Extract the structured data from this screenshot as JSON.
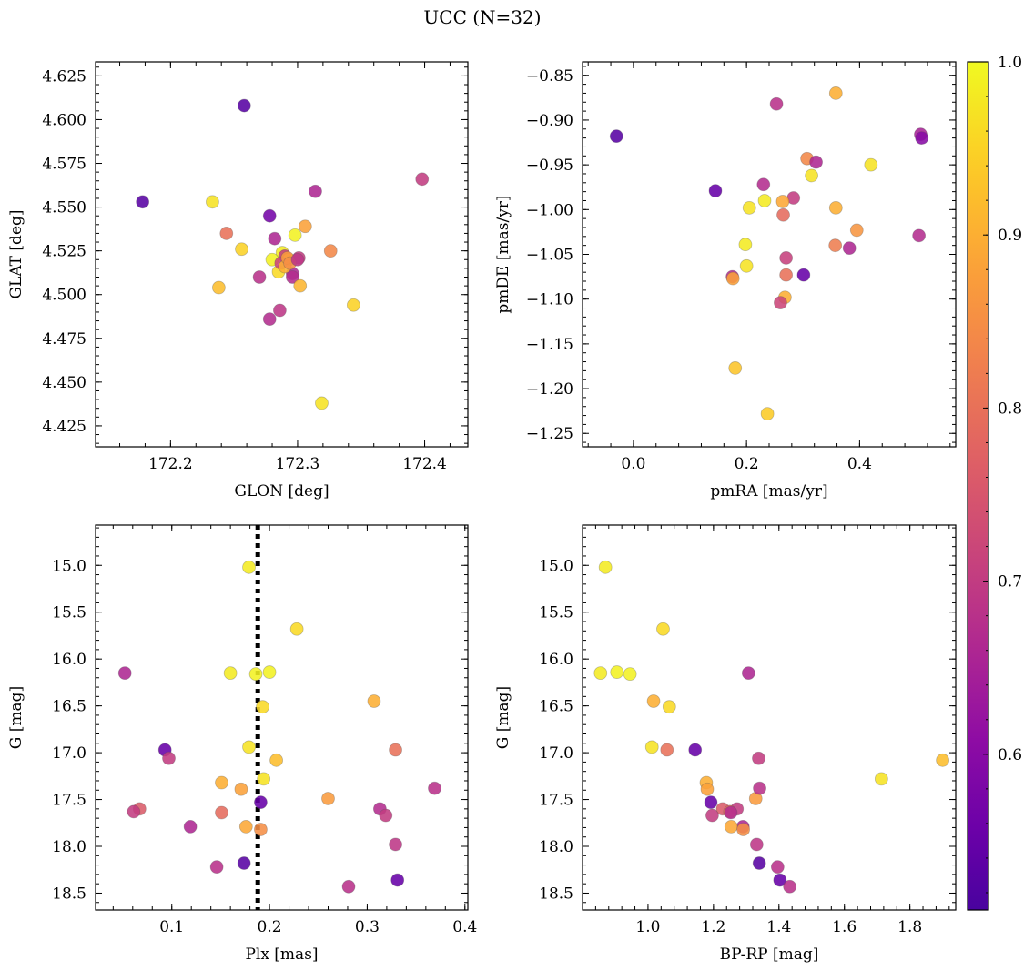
{
  "title": "UCC (N=32)",
  "colorbar": {
    "vmin": 0.51,
    "vmax": 1.0,
    "ticks": [
      0.6,
      0.7,
      0.8,
      0.9,
      1.0
    ],
    "tick_labels": [
      "0.6",
      "0.7",
      "0.8",
      "0.9",
      "1.0"
    ],
    "colormap": "plasma"
  },
  "chart_data": [
    {
      "id": "glon-glat",
      "type": "scatter",
      "xlabel": "GLON [deg]",
      "ylabel": "GLAT [deg]",
      "xlim": [
        172.141,
        172.434
      ],
      "ylim": [
        4.413,
        4.633
      ],
      "y_inverted": false,
      "xticks": [
        172.2,
        172.3,
        172.4
      ],
      "xtick_labels": [
        "172.2",
        "172.3",
        "172.4"
      ],
      "yticks": [
        4.425,
        4.45,
        4.475,
        4.5,
        4.525,
        4.55,
        4.575,
        4.6,
        4.625
      ],
      "ytick_labels": [
        "4.425",
        "4.450",
        "4.475",
        "4.500",
        "4.525",
        "4.550",
        "4.575",
        "4.600",
        "4.625"
      ],
      "x": [
        172.178,
        172.258,
        172.233,
        172.244,
        172.278,
        172.256,
        172.238,
        172.27,
        172.288,
        172.29,
        172.293,
        172.298,
        172.306,
        172.301,
        172.296,
        172.28,
        172.285,
        172.287,
        172.29,
        172.292,
        172.294,
        172.296,
        172.302,
        172.326,
        172.278,
        172.286,
        172.314,
        172.344,
        172.319,
        172.398,
        172.282,
        172.3
      ],
      "y": [
        4.553,
        4.608,
        4.553,
        4.535,
        4.545,
        4.526,
        4.504,
        4.51,
        4.524,
        4.522,
        4.52,
        4.534,
        4.539,
        4.521,
        4.512,
        4.52,
        4.513,
        4.518,
        4.516,
        4.521,
        4.518,
        4.51,
        4.505,
        4.525,
        4.486,
        4.491,
        4.559,
        4.494,
        4.438,
        4.566,
        4.532,
        4.52
      ],
      "c": [
        0.53,
        0.53,
        0.97,
        0.8,
        0.57,
        0.95,
        0.92,
        0.68,
        0.98,
        0.7,
        0.88,
        0.99,
        0.88,
        0.7,
        0.66,
        0.99,
        0.96,
        0.72,
        0.9,
        0.87,
        0.85,
        0.67,
        0.91,
        0.84,
        0.67,
        0.69,
        0.66,
        0.95,
        0.97,
        0.7,
        0.66,
        0.69
      ]
    },
    {
      "id": "pmra-pmde",
      "type": "scatter",
      "xlabel": "pmRA [mas/yr]",
      "ylabel": "pmDE [mas/yr]",
      "xlim": [
        -0.09,
        0.57
      ],
      "ylim": [
        -1.265,
        -0.835
      ],
      "y_inverted": false,
      "xticks": [
        0.0,
        0.2,
        0.4
      ],
      "xtick_labels": [
        "0.0",
        "0.2",
        "0.4"
      ],
      "yticks": [
        -1.25,
        -1.2,
        -1.15,
        -1.1,
        -1.05,
        -1.0,
        -0.95,
        -0.9,
        -0.85
      ],
      "ytick_labels": [
        "−1.25",
        "−1.20",
        "−1.15",
        "−1.10",
        "−1.05",
        "−1.00",
        "−0.95",
        "−0.90",
        "−0.85"
      ],
      "x": [
        -0.03,
        0.145,
        0.358,
        0.253,
        0.508,
        0.51,
        0.307,
        0.323,
        0.315,
        0.42,
        0.23,
        0.232,
        0.205,
        0.283,
        0.264,
        0.358,
        0.265,
        0.198,
        0.27,
        0.382,
        0.357,
        0.395,
        0.505,
        0.2,
        0.175,
        0.176,
        0.301,
        0.27,
        0.268,
        0.26,
        0.18,
        0.237
      ],
      "y": [
        -0.918,
        -0.979,
        -0.87,
        -0.882,
        -0.916,
        -0.92,
        -0.943,
        -0.947,
        -0.962,
        -0.95,
        -0.972,
        -0.99,
        -0.998,
        -0.987,
        -0.991,
        -0.998,
        -1.006,
        -1.039,
        -1.054,
        -1.043,
        -1.04,
        -1.023,
        -1.029,
        -1.063,
        -1.075,
        -1.077,
        -1.073,
        -1.073,
        -1.098,
        -1.104,
        -1.177,
        -1.228
      ],
      "c": [
        0.53,
        0.55,
        0.9,
        0.68,
        0.65,
        0.6,
        0.84,
        0.66,
        0.97,
        0.97,
        0.67,
        0.98,
        0.97,
        0.7,
        0.89,
        0.9,
        0.79,
        0.98,
        0.71,
        0.66,
        0.82,
        0.86,
        0.67,
        0.97,
        0.67,
        0.88,
        0.55,
        0.8,
        0.9,
        0.72,
        0.93,
        0.94
      ]
    },
    {
      "id": "plx-g",
      "type": "scatter",
      "xlabel": "Plx [mas]",
      "ylabel": "G [mag]",
      "xlim": [
        0.022,
        0.403
      ],
      "ylim": [
        18.68,
        14.57
      ],
      "y_inverted": true,
      "xticks": [
        0.1,
        0.2,
        0.3,
        0.4
      ],
      "xtick_labels": [
        "0.1",
        "0.2",
        "0.3",
        "0.4"
      ],
      "yticks": [
        15.0,
        15.5,
        16.0,
        16.5,
        17.0,
        17.5,
        18.0,
        18.5
      ],
      "ytick_labels": [
        "15.0",
        "15.5",
        "16.0",
        "16.5",
        "17.0",
        "17.5",
        "18.0",
        "18.5"
      ],
      "vline": 0.188,
      "x": [
        0.179,
        0.228,
        0.052,
        0.16,
        0.186,
        0.2,
        0.193,
        0.307,
        0.093,
        0.097,
        0.179,
        0.207,
        0.329,
        0.151,
        0.194,
        0.171,
        0.26,
        0.369,
        0.191,
        0.067,
        0.061,
        0.151,
        0.313,
        0.319,
        0.119,
        0.176,
        0.191,
        0.329,
        0.146,
        0.174,
        0.331,
        0.281
      ],
      "y": [
        15.02,
        15.68,
        16.15,
        16.15,
        16.16,
        16.14,
        16.51,
        16.45,
        16.97,
        17.06,
        16.94,
        17.08,
        16.97,
        17.32,
        17.28,
        17.39,
        17.49,
        17.38,
        17.53,
        17.6,
        17.63,
        17.64,
        17.6,
        17.67,
        17.79,
        17.79,
        17.82,
        17.98,
        18.22,
        18.18,
        18.36,
        18.43
      ],
      "c": [
        0.98,
        0.96,
        0.66,
        0.98,
        0.99,
        0.99,
        0.96,
        0.9,
        0.55,
        0.7,
        0.97,
        0.92,
        0.8,
        0.9,
        0.97,
        0.88,
        0.87,
        0.68,
        0.55,
        0.76,
        0.7,
        0.79,
        0.67,
        0.7,
        0.66,
        0.89,
        0.85,
        0.69,
        0.68,
        0.53,
        0.55,
        0.68
      ]
    },
    {
      "id": "bprp-g",
      "type": "scatter",
      "xlabel": "BP-RP [mag]",
      "ylabel": "G [mag]",
      "xlim": [
        0.8,
        1.94
      ],
      "ylim": [
        18.68,
        14.57
      ],
      "y_inverted": true,
      "xticks": [
        1.0,
        1.2,
        1.4,
        1.6,
        1.8
      ],
      "xtick_labels": [
        "1.0",
        "1.2",
        "1.4",
        "1.6",
        "1.8"
      ],
      "yticks": [
        15.0,
        15.5,
        16.0,
        16.5,
        17.0,
        17.5,
        18.0,
        18.5
      ],
      "ytick_labels": [
        "15.0",
        "15.5",
        "16.0",
        "16.5",
        "17.0",
        "17.5",
        "18.0",
        "18.5"
      ],
      "x": [
        0.87,
        1.046,
        0.855,
        0.905,
        0.945,
        1.307,
        1.017,
        1.065,
        1.012,
        1.058,
        1.144,
        1.338,
        1.9,
        1.178,
        1.713,
        1.181,
        1.329,
        1.341,
        1.192,
        1.228,
        1.272,
        1.196,
        1.25,
        1.253,
        1.29,
        1.254,
        1.291,
        1.332,
        1.396,
        1.34,
        1.403,
        1.433
      ],
      "y": [
        15.02,
        15.68,
        16.15,
        16.14,
        16.16,
        16.15,
        16.45,
        16.51,
        16.94,
        16.97,
        16.97,
        17.06,
        17.08,
        17.32,
        17.28,
        17.39,
        17.49,
        17.38,
        17.53,
        17.6,
        17.6,
        17.67,
        17.63,
        17.64,
        17.79,
        17.79,
        17.82,
        17.98,
        18.22,
        18.18,
        18.36,
        18.43
      ],
      "c": [
        0.98,
        0.96,
        0.98,
        0.99,
        0.99,
        0.66,
        0.9,
        0.96,
        0.97,
        0.8,
        0.55,
        0.7,
        0.92,
        0.9,
        0.97,
        0.88,
        0.87,
        0.68,
        0.55,
        0.76,
        0.7,
        0.7,
        0.79,
        0.67,
        0.66,
        0.89,
        0.85,
        0.69,
        0.68,
        0.53,
        0.55,
        0.68
      ]
    }
  ]
}
